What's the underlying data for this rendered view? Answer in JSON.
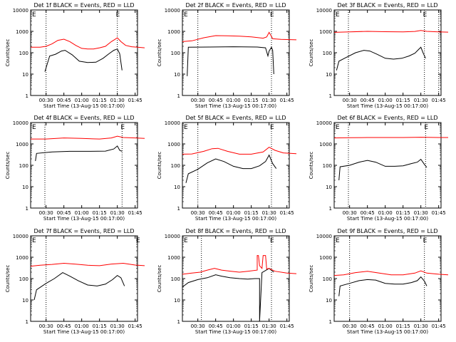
{
  "figure": {
    "xlabel": "Start Time (13-Aug-15 00:17:00)",
    "ylabel": "Counts/sec",
    "marker_label": "E",
    "x_tick_labels": [
      "00:30",
      "00:45",
      "01:00",
      "01:15",
      "01:30",
      "01:45"
    ],
    "y_tick_labels": [
      "1",
      "10",
      "100",
      "1000",
      "10000"
    ],
    "colors": {
      "events": "#000000",
      "lld": "#ff0000",
      "axes": "#000000"
    }
  },
  "chart_data": [
    {
      "type": "line",
      "title": "Det 1f BLACK = Events, RED = LLD",
      "yscale": "log",
      "xlim_minutes": [
        0,
        90
      ],
      "ylim": [
        1,
        10000
      ],
      "grid": false,
      "vlines": [
        "00:30",
        "01:30",
        "01:47"
      ],
      "series": [
        {
          "name": "Events",
          "x": [
            "00:29",
            "00:33",
            "00:38",
            "00:43",
            "00:46",
            "00:52",
            "00:58",
            "01:05",
            "01:12",
            "01:18",
            "01:23",
            "01:27",
            "01:30",
            "01:32",
            "01:34"
          ],
          "y": [
            13,
            70,
            85,
            120,
            130,
            80,
            40,
            35,
            36,
            55,
            90,
            130,
            150,
            90,
            15
          ]
        },
        {
          "name": "LLD",
          "x": [
            "00:17",
            "00:25",
            "00:30",
            "00:35",
            "00:40",
            "00:45",
            "00:50",
            "00:55",
            "01:00",
            "01:05",
            "01:10",
            "01:15",
            "01:20",
            "01:25",
            "01:28",
            "01:30",
            "01:33",
            "01:37",
            "01:42",
            "01:47",
            "01:53"
          ],
          "y": [
            180,
            180,
            200,
            260,
            380,
            430,
            330,
            220,
            160,
            150,
            150,
            170,
            200,
            330,
            420,
            500,
            330,
            220,
            190,
            180,
            170
          ]
        }
      ]
    },
    {
      "type": "line",
      "title": "Det 2f BLACK = Events, RED = LLD",
      "yscale": "log",
      "xlim_minutes": [
        0,
        90
      ],
      "ylim": [
        1,
        10000
      ],
      "grid": false,
      "vlines": [
        "00:30",
        "01:32",
        "01:47"
      ],
      "series": [
        {
          "name": "Events",
          "x": [
            "00:21",
            "00:22",
            "00:40",
            "01:00",
            "01:20",
            "01:27",
            "01:29",
            "01:30",
            "01:32",
            "01:33",
            "01:34"
          ],
          "y": [
            8,
            180,
            185,
            190,
            185,
            170,
            70,
            120,
            180,
            130,
            10
          ]
        },
        {
          "name": "LLD",
          "x": [
            "00:17",
            "00:25",
            "00:35",
            "00:45",
            "00:55",
            "01:05",
            "01:15",
            "01:25",
            "01:28",
            "01:30",
            "01:33",
            "01:40",
            "01:53"
          ],
          "y": [
            330,
            360,
            500,
            630,
            620,
            600,
            550,
            480,
            550,
            900,
            450,
            420,
            400
          ]
        }
      ]
    },
    {
      "type": "line",
      "title": "Det 3f BLACK = Events, RED = LLD",
      "yscale": "log",
      "xlim_minutes": [
        0,
        90
      ],
      "ylim": [
        1,
        10000
      ],
      "grid": false,
      "vlines": [
        "00:29",
        "01:33",
        "01:45"
      ],
      "series": [
        {
          "name": "Events",
          "x": [
            "00:19",
            "00:21",
            "00:27",
            "00:35",
            "00:42",
            "00:47",
            "00:53",
            "01:00",
            "01:07",
            "01:14",
            "01:20",
            "01:25",
            "01:28",
            "01:30",
            "01:32",
            "01:34"
          ],
          "y": [
            15,
            40,
            60,
            100,
            130,
            120,
            85,
            55,
            50,
            55,
            70,
            95,
            140,
            180,
            95,
            55
          ]
        },
        {
          "name": "LLD",
          "x": [
            "00:17",
            "00:30",
            "00:45",
            "01:00",
            "01:15",
            "01:25",
            "01:30",
            "01:35",
            "01:45",
            "01:53"
          ],
          "y": [
            900,
            950,
            1000,
            960,
            950,
            990,
            1100,
            1000,
            950,
            920
          ]
        }
      ]
    },
    {
      "type": "line",
      "title": "Det 4f BLACK = Events, RED = LLD",
      "yscale": "log",
      "xlim_minutes": [
        0,
        90
      ],
      "ylim": [
        1,
        10000
      ],
      "grid": false,
      "vlines": [
        "00:29",
        "01:34"
      ],
      "series": [
        {
          "name": "Events",
          "x": [
            "00:21",
            "00:22",
            "00:35",
            "00:50",
            "01:05",
            "01:20",
            "01:27",
            "01:30",
            "01:32",
            "01:34"
          ],
          "y": [
            160,
            360,
            420,
            450,
            450,
            460,
            580,
            800,
            500,
            450
          ]
        },
        {
          "name": "LLD",
          "x": [
            "00:17",
            "00:30",
            "00:45",
            "01:00",
            "01:15",
            "01:25",
            "01:30",
            "01:35",
            "01:45",
            "01:53"
          ],
          "y": [
            1700,
            1700,
            1900,
            1800,
            1700,
            1900,
            2300,
            2000,
            1900,
            1800
          ]
        }
      ]
    },
    {
      "type": "line",
      "title": "Det 5f BLACK = Events, RED = LLD",
      "yscale": "log",
      "xlim_minutes": [
        0,
        90
      ],
      "ylim": [
        1,
        10000
      ],
      "grid": false,
      "vlines": [
        "00:30",
        "01:32"
      ],
      "series": [
        {
          "name": "Events",
          "x": [
            "00:20",
            "00:22",
            "00:30",
            "00:38",
            "00:45",
            "00:52",
            "01:00",
            "01:08",
            "01:15",
            "01:22",
            "01:27",
            "01:30",
            "01:33",
            "01:36"
          ],
          "y": [
            15,
            40,
            65,
            130,
            200,
            150,
            90,
            70,
            70,
            95,
            150,
            300,
            120,
            70
          ]
        },
        {
          "name": "LLD",
          "x": [
            "00:17",
            "00:25",
            "00:35",
            "00:42",
            "00:47",
            "00:55",
            "01:05",
            "01:15",
            "01:25",
            "01:30",
            "01:35",
            "01:42",
            "01:53"
          ],
          "y": [
            330,
            340,
            450,
            600,
            620,
            450,
            330,
            330,
            420,
            700,
            500,
            380,
            350
          ]
        }
      ]
    },
    {
      "type": "line",
      "title": "Det 6f BLACK = Events, RED = LLD",
      "yscale": "log",
      "xlim_minutes": [
        0,
        90
      ],
      "ylim": [
        1,
        10000
      ],
      "grid": false,
      "vlines": [
        "00:29",
        "01:34"
      ],
      "series": [
        {
          "name": "Events",
          "x": [
            "00:21",
            "00:22",
            "00:30",
            "00:38",
            "00:45",
            "00:52",
            "01:00",
            "01:08",
            "01:15",
            "01:22",
            "01:27",
            "01:30",
            "01:33",
            "01:35"
          ],
          "y": [
            20,
            85,
            100,
            140,
            170,
            140,
            90,
            90,
            95,
            120,
            140,
            190,
            110,
            80
          ]
        },
        {
          "name": "LLD",
          "x": [
            "00:17",
            "00:30",
            "00:45",
            "01:00",
            "01:15",
            "01:30",
            "01:45",
            "01:53"
          ],
          "y": [
            1900,
            1950,
            2000,
            2000,
            2000,
            2050,
            2000,
            2000
          ]
        }
      ]
    },
    {
      "type": "line",
      "title": "Det 7f BLACK = Events, RED = LLD",
      "yscale": "log",
      "xlim_minutes": [
        0,
        90
      ],
      "ylim": [
        1,
        10000
      ],
      "grid": false,
      "vlines": [
        "00:30",
        "01:47"
      ],
      "series": [
        {
          "name": "Events",
          "x": [
            "00:20",
            "00:22",
            "00:30",
            "00:37",
            "00:44",
            "00:50",
            "00:57",
            "01:05",
            "01:13",
            "01:20",
            "01:26",
            "01:30",
            "01:33",
            "01:36"
          ],
          "y": [
            10,
            30,
            60,
            100,
            190,
            130,
            80,
            50,
            45,
            55,
            90,
            140,
            110,
            45
          ]
        },
        {
          "name": "LLD",
          "x": [
            "00:17",
            "00:25",
            "00:35",
            "00:45",
            "00:55",
            "01:05",
            "01:15",
            "01:25",
            "01:35",
            "01:45",
            "01:53"
          ],
          "y": [
            380,
            420,
            460,
            520,
            470,
            420,
            400,
            480,
            520,
            430,
            400
          ]
        }
      ]
    },
    {
      "type": "line",
      "title": "Det 8f BLACK = Events, RED = LLD",
      "yscale": "log",
      "xlim_minutes": [
        0,
        90
      ],
      "ylim": [
        1,
        10000
      ],
      "grid": false,
      "vlines": [
        "00:33",
        "01:32"
      ],
      "series": [
        {
          "name": "Events",
          "x": [
            "00:17",
            "00:22",
            "00:30",
            "00:38",
            "00:45",
            "00:50",
            "00:57",
            "01:05",
            "01:12",
            "01:18",
            "01:22",
            "01:22",
            "01:24",
            "01:30",
            "01:34"
          ],
          "y": [
            40,
            65,
            90,
            110,
            150,
            130,
            110,
            100,
            95,
            100,
            100,
            1,
            190,
            300,
            200
          ]
        },
        {
          "name": "LLD",
          "x": [
            "00:17",
            "00:25",
            "00:32",
            "00:38",
            "00:44",
            "00:50",
            "00:58",
            "01:05",
            "01:12",
            "01:20",
            "01:20",
            "01:21",
            "01:22",
            "01:24",
            "01:25",
            "01:27",
            "01:28",
            "01:30",
            "01:35",
            "01:45",
            "01:53"
          ],
          "y": [
            160,
            180,
            200,
            250,
            300,
            250,
            220,
            200,
            220,
            250,
            1200,
            1200,
            400,
            300,
            1200,
            1200,
            280,
            300,
            220,
            180,
            170
          ]
        }
      ]
    },
    {
      "type": "line",
      "title": "Det 9f BLACK = Events, RED = LLD",
      "yscale": "log",
      "xlim_minutes": [
        0,
        90
      ],
      "ylim": [
        1,
        10000
      ],
      "grid": false,
      "vlines": [
        "00:30",
        "01:33"
      ],
      "series": [
        {
          "name": "Events",
          "x": [
            "00:21",
            "00:22",
            "00:30",
            "00:38",
            "00:45",
            "00:52",
            "01:00",
            "01:08",
            "01:15",
            "01:22",
            "01:27",
            "01:30",
            "01:33",
            "01:35"
          ],
          "y": [
            15,
            45,
            60,
            80,
            90,
            85,
            60,
            55,
            55,
            65,
            80,
            120,
            75,
            45
          ]
        },
        {
          "name": "LLD",
          "x": [
            "00:17",
            "00:25",
            "00:35",
            "00:45",
            "00:55",
            "01:05",
            "01:15",
            "01:25",
            "01:30",
            "01:35",
            "01:45",
            "01:53"
          ],
          "y": [
            140,
            150,
            190,
            220,
            180,
            150,
            150,
            180,
            230,
            180,
            160,
            150
          ]
        }
      ]
    }
  ]
}
